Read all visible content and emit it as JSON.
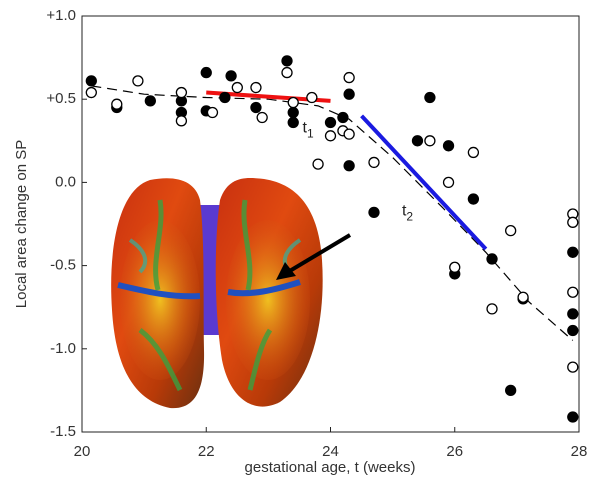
{
  "chart_data": {
    "type": "scatter",
    "xlabel": "gestational age, t (weeks)",
    "ylabel": "Local area change on SP",
    "xlim": [
      20,
      28
    ],
    "xticks": [
      20,
      22,
      24,
      26,
      28
    ],
    "ylim": [
      -1.5,
      1.0
    ],
    "yticks": [
      {
        "value": -1.5,
        "label": "-1.5"
      },
      {
        "value": -1.0,
        "label": "-1.0"
      },
      {
        "value": -0.5,
        "label": "-0.5"
      },
      {
        "value": 0,
        "label": "0.0"
      },
      {
        "value": 0.5,
        "label": "+0.5"
      },
      {
        "value": 1.0,
        "label": "+1.0"
      }
    ],
    "series": [
      {
        "color": "#000000",
        "filled": true,
        "x": [
          20.15,
          20.56,
          21.1,
          21.6,
          21.6,
          22.0,
          22.0,
          22.3,
          22.4,
          22.8,
          23.3,
          23.4,
          23.4,
          24.0,
          24.2,
          24.3,
          24.3,
          24.7,
          25.6,
          25.4,
          25.9,
          26.0,
          26.3,
          26.6,
          27.1,
          26.9,
          27.9,
          27.9,
          27.9,
          27.9
        ],
        "values": [
          0.61,
          0.45,
          0.49,
          0.49,
          0.42,
          0.66,
          0.43,
          0.51,
          0.64,
          0.45,
          0.73,
          0.42,
          0.36,
          0.36,
          0.39,
          0.53,
          0.1,
          -0.18,
          0.51,
          0.25,
          0.22,
          -0.55,
          -0.1,
          -0.46,
          -0.7,
          -1.25,
          -0.42,
          -0.79,
          -0.89,
          -1.41
        ]
      },
      {
        "color": "#000000",
        "filled": false,
        "x": [
          20.15,
          20.56,
          20.9,
          21.6,
          21.6,
          22.1,
          22.5,
          22.8,
          22.9,
          23.3,
          23.4,
          23.7,
          23.8,
          24.0,
          24.2,
          24.3,
          24.3,
          24.7,
          25.6,
          25.9,
          26.3,
          26.0,
          26.6,
          26.9,
          27.1,
          27.9,
          27.9,
          27.9,
          27.9
        ],
        "values": [
          0.54,
          0.47,
          0.61,
          0.54,
          0.37,
          0.42,
          0.57,
          0.57,
          0.39,
          0.66,
          0.48,
          0.51,
          0.11,
          0.28,
          0.31,
          0.29,
          0.63,
          0.12,
          0.25,
          0.0,
          0.18,
          -0.51,
          -0.76,
          -0.29,
          -0.69,
          -0.19,
          -0.24,
          -0.66,
          -1.11
        ]
      }
    ],
    "lines": [
      {
        "color": "#000000",
        "dashed": true,
        "x": [
          20.15,
          21.0,
          22.0,
          23.0,
          23.8,
          24.3,
          25.0,
          25.8,
          26.5,
          27.2,
          27.9
        ],
        "values": [
          0.58,
          0.53,
          0.51,
          0.5,
          0.46,
          0.38,
          0.15,
          -0.15,
          -0.42,
          -0.72,
          -0.95
        ]
      },
      {
        "color": "#ee1111",
        "dashed": false,
        "x": [
          22.0,
          24.0
        ],
        "values": [
          0.54,
          0.49
        ]
      },
      {
        "color": "#1a1ae0",
        "dashed": false,
        "x": [
          24.5,
          26.5
        ],
        "values": [
          0.4,
          -0.4
        ]
      }
    ],
    "annotations": [
      {
        "text": "t",
        "sub": "1",
        "x": 23.55,
        "y": 0.3
      },
      {
        "text": "t",
        "sub": "2",
        "x": 25.15,
        "y": -0.2
      }
    ]
  }
}
